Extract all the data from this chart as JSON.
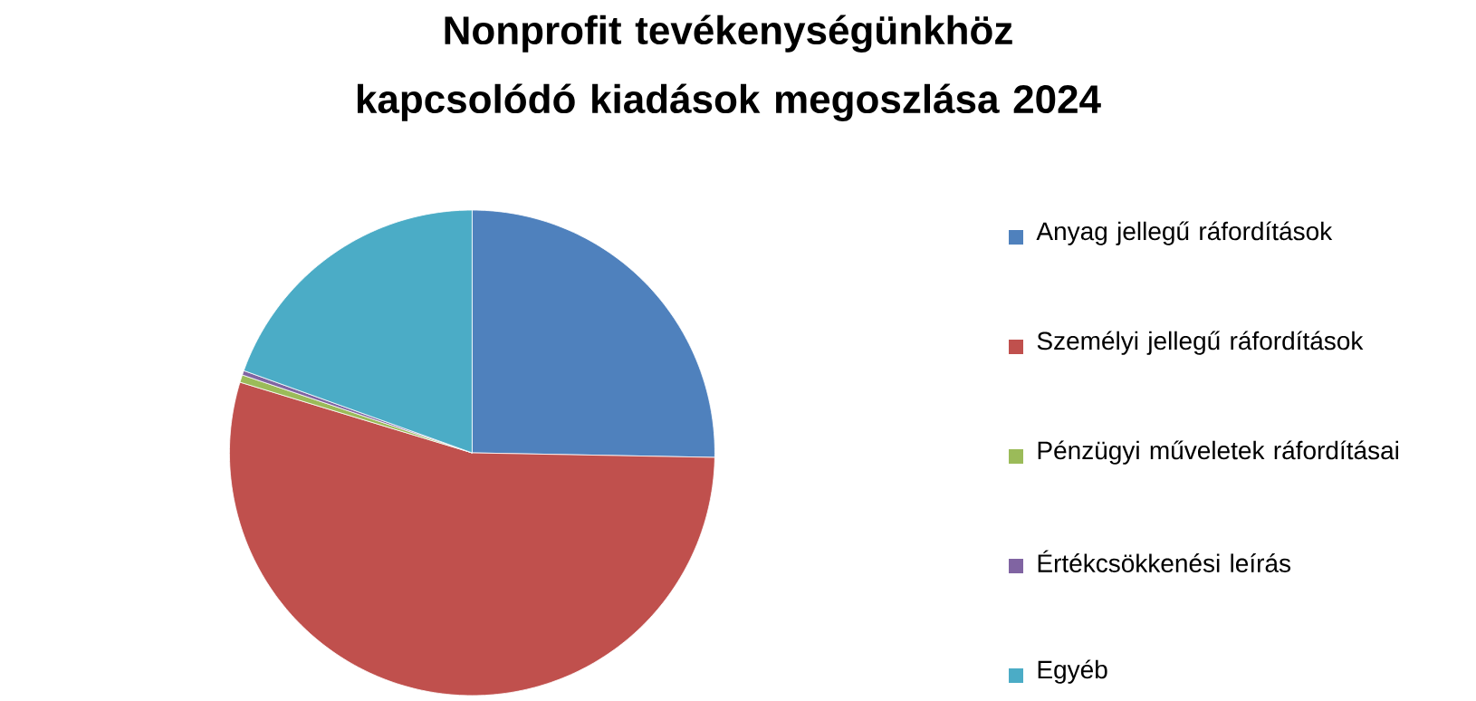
{
  "chart_data": {
    "type": "pie",
    "title": "Nonprofit tevékenységünkhöz kapcsolódó kiadások megoszlása 2024",
    "categories": [
      "Anyag jellegű ráfordítások",
      "Személyi jellegű ráfordítások",
      "Pénzügyi műveletek ráfordításai",
      "Értékcsökkenési leírás",
      "Egyéb"
    ],
    "values": [
      25.3,
      54.4,
      0.5,
      0.3,
      19.5
    ],
    "colors": [
      "#4f81bd",
      "#c0504d",
      "#9bbb59",
      "#8064a2",
      "#4bacc6"
    ],
    "legend": "right"
  }
}
